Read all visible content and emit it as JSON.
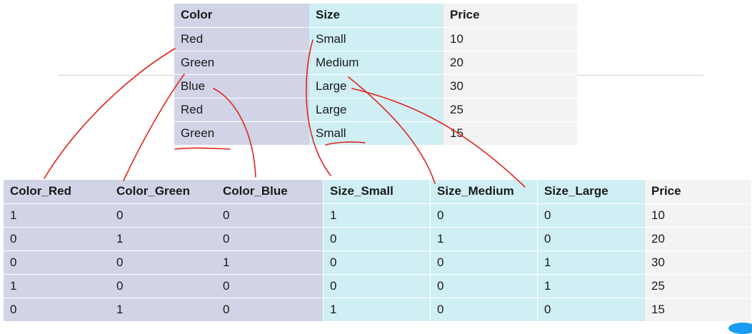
{
  "source_table": {
    "headers": [
      "Color",
      "Size",
      "Price"
    ],
    "rows": [
      [
        "Red",
        "Small",
        "10"
      ],
      [
        "Green",
        "Medium",
        "20"
      ],
      [
        "Blue",
        "Large",
        "30"
      ],
      [
        "Red",
        "Large",
        "25"
      ],
      [
        "Green",
        "Small",
        "15"
      ]
    ]
  },
  "encoded_table": {
    "headers": [
      "Color_Red",
      "Color_Green",
      "Color_Blue",
      "Size_Small",
      "Size_Medium",
      "Size_Large",
      "Price"
    ],
    "rows": [
      [
        "1",
        "0",
        "0",
        "1",
        "0",
        "0",
        "10"
      ],
      [
        "0",
        "1",
        "0",
        "0",
        "1",
        "0",
        "20"
      ],
      [
        "0",
        "0",
        "1",
        "0",
        "0",
        "1",
        "30"
      ],
      [
        "1",
        "0",
        "0",
        "0",
        "0",
        "1",
        "25"
      ],
      [
        "0",
        "1",
        "0",
        "1",
        "0",
        "0",
        "15"
      ]
    ]
  },
  "colors": {
    "color_column_bg": "#d0d4e6",
    "size_column_bg": "#cfeff4",
    "price_column_bg": "#f3f3f3",
    "annotation_ink": "#e0251b"
  }
}
